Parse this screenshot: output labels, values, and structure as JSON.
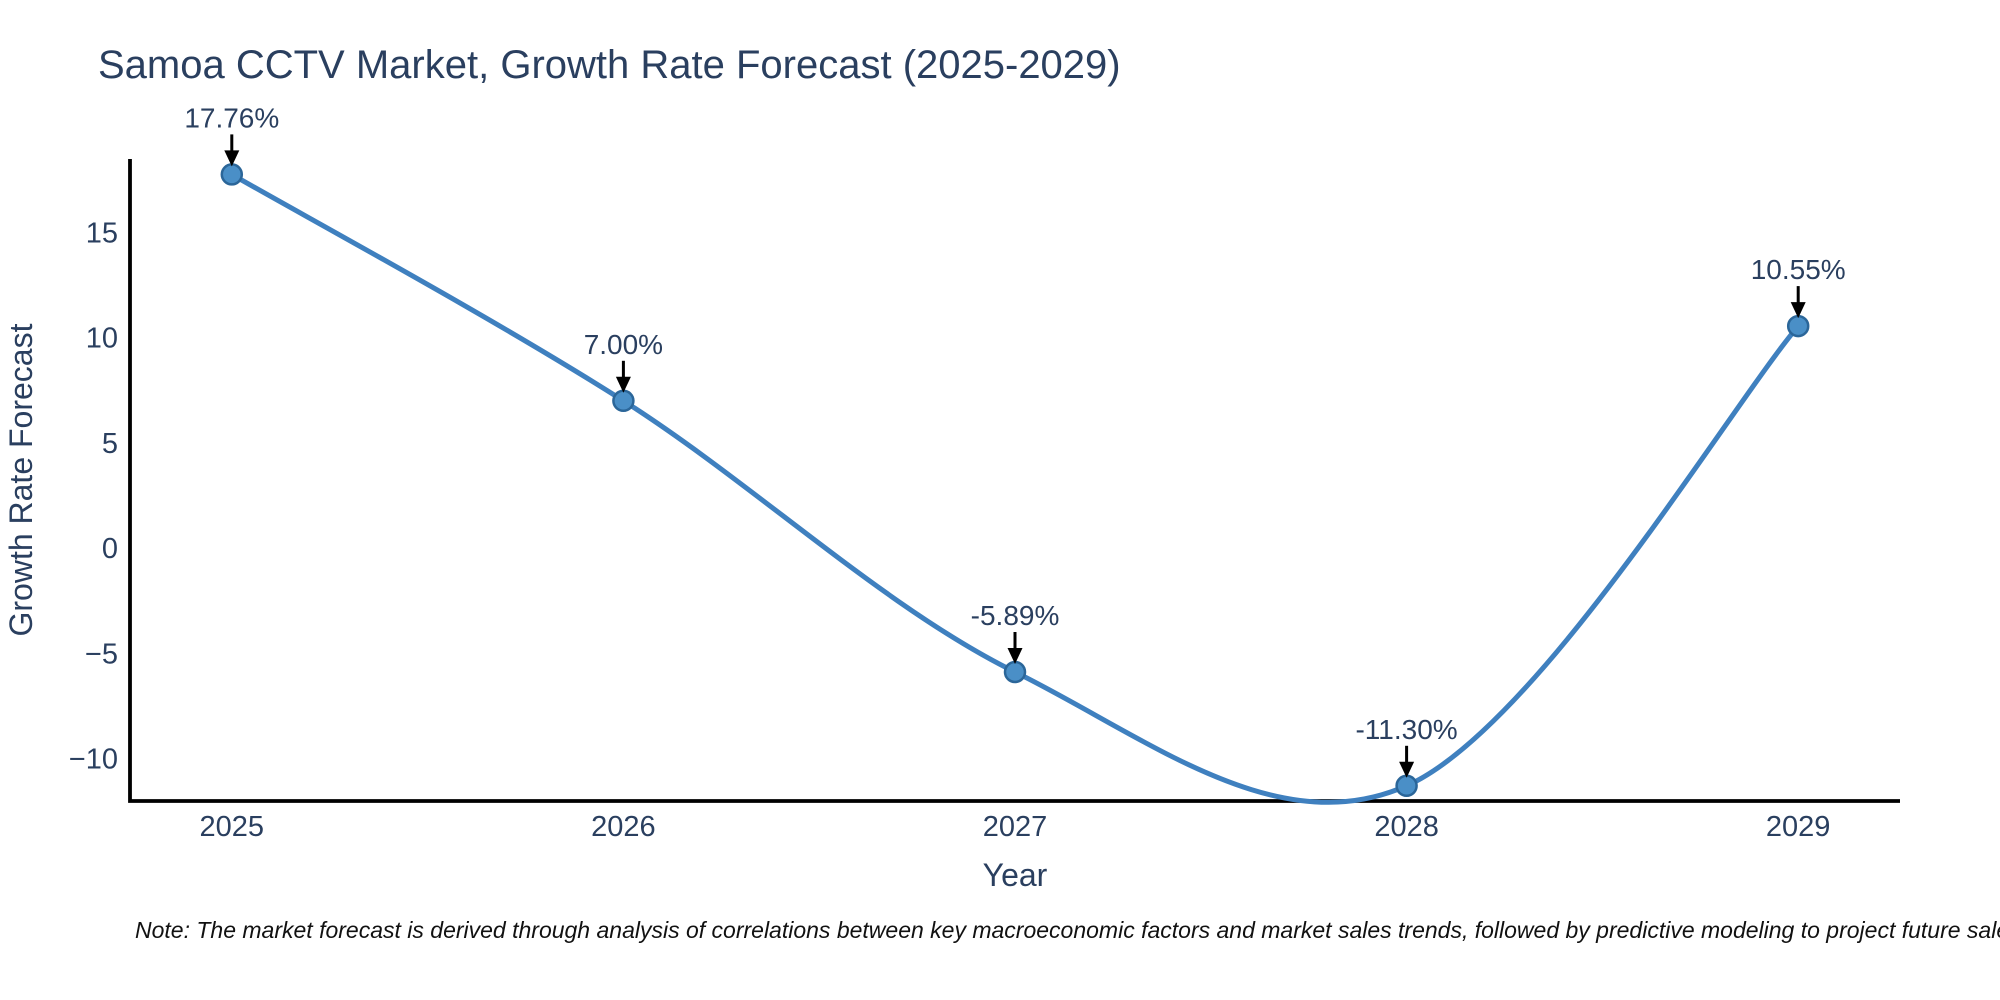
{
  "note": "Note: The market forecast is derived through analysis of correlations between key macroeconomic factors and market sales trends, followed by predictive modeling to project future sales",
  "chart_data": {
    "type": "line",
    "title": "Samoa CCTV Market, Growth Rate Forecast (2025-2029)",
    "xlabel": "Year",
    "ylabel": "Growth Rate Forecast",
    "line_shape": "spline",
    "grid": false,
    "legend": false,
    "x": [
      2025,
      2026,
      2027,
      2028,
      2029
    ],
    "y": [
      17.76,
      7.0,
      -5.89,
      -11.3,
      10.55
    ],
    "point_labels": [
      "17.76%",
      "7.00%",
      "-5.89%",
      "-11.30%",
      "10.55%"
    ],
    "xlim": [
      2024.74,
      2029.26
    ],
    "ylim": [
      -12.02,
      18.49
    ],
    "xticks": {
      "values": [
        2025,
        2026,
        2027,
        2028,
        2029
      ],
      "labels": [
        "2025",
        "2026",
        "2027",
        "2028",
        "2029"
      ]
    },
    "yticks": {
      "values": [
        15,
        10,
        5,
        0,
        -5,
        -10
      ],
      "labels": [
        "15",
        "10",
        "5",
        "0",
        "−5",
        "−10"
      ]
    },
    "colors": {
      "line": "#3f80bf",
      "marker_fill": "#4a8fc7",
      "marker_edge": "#2b6699",
      "axis": "#000000",
      "arrow": "#000000",
      "text": "#2a3f5f"
    }
  }
}
